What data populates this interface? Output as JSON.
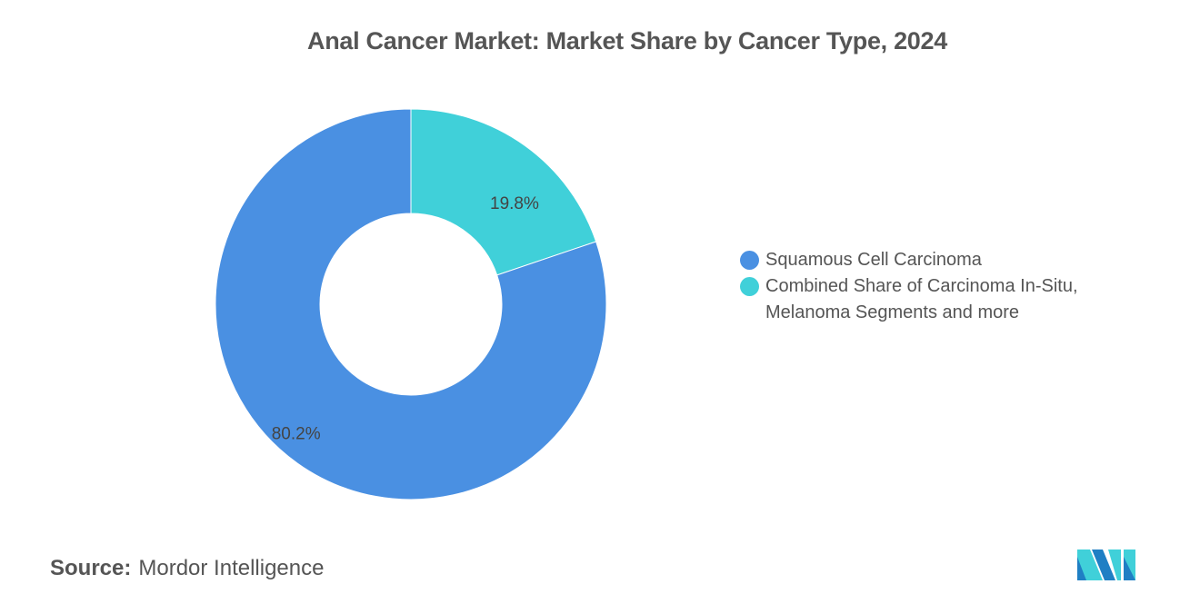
{
  "chart_data": {
    "type": "pie",
    "donut": true,
    "title": "Anal Cancer Market: Market Share by Cancer Type, 2024",
    "slices": [
      {
        "label": "Combined Share of Carcinoma In-Situ, Melanoma Segments and more",
        "value": 19.8,
        "display": "19.8%",
        "color": "#40d0d9"
      },
      {
        "label": "Squamous Cell Carcinoma",
        "value": 80.2,
        "display": "80.2%",
        "color": "#4a90e2"
      }
    ],
    "legend_placement": "right"
  },
  "legend": [
    {
      "label": "Squamous Cell Carcinoma",
      "color": "#4a90e2"
    },
    {
      "label_line1": "Combined Share of Carcinoma In-Situ,",
      "label_line2": "Melanoma Segments and more",
      "color": "#40d0d9"
    }
  ],
  "source": {
    "label": "Source:",
    "value": "Mordor Intelligence"
  },
  "logo": {
    "text": "Mordor Intelligence logo",
    "colors": [
      "#1f7fc4",
      "#40d0d9"
    ]
  }
}
